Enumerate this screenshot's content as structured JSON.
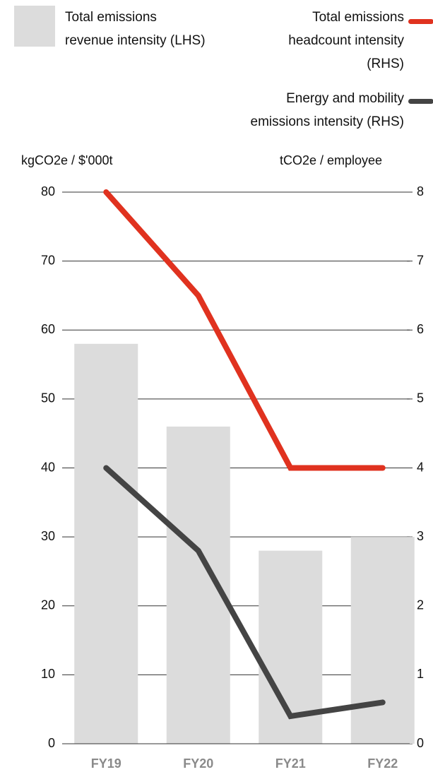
{
  "chart_data": {
    "type": "combo",
    "y_label": "kgCO2e / $'000t",
    "y2_label": "tCO2e / employee",
    "categories": [
      "FY19",
      "FY20",
      "FY21",
      "FY22"
    ],
    "series": [
      {
        "name": "Total emissions revenue intensity (LHS)",
        "type": "bar",
        "color": "#dcdcdc",
        "values": [
          58,
          46,
          28,
          30
        ]
      },
      {
        "name": "Total emissions headcount intensity (RHS)",
        "type": "line",
        "axis": "y2",
        "color": "#e0321f",
        "values": [
          8,
          6.5,
          4,
          4
        ]
      },
      {
        "name": "Energy and mobility emissions intensity (RHS)",
        "type": "line",
        "axis": "y2",
        "color": "#444444",
        "values": [
          4,
          2.8,
          0.4,
          0.6
        ]
      }
    ],
    "ylim": [
      0,
      80
    ],
    "yticks": [
      0,
      10,
      20,
      30,
      40,
      50,
      60,
      70,
      80
    ],
    "y2lim": [
      0,
      8
    ],
    "y2ticks": [
      0,
      1,
      2,
      3,
      4,
      5,
      6,
      7,
      8
    ],
    "grid": true
  }
}
